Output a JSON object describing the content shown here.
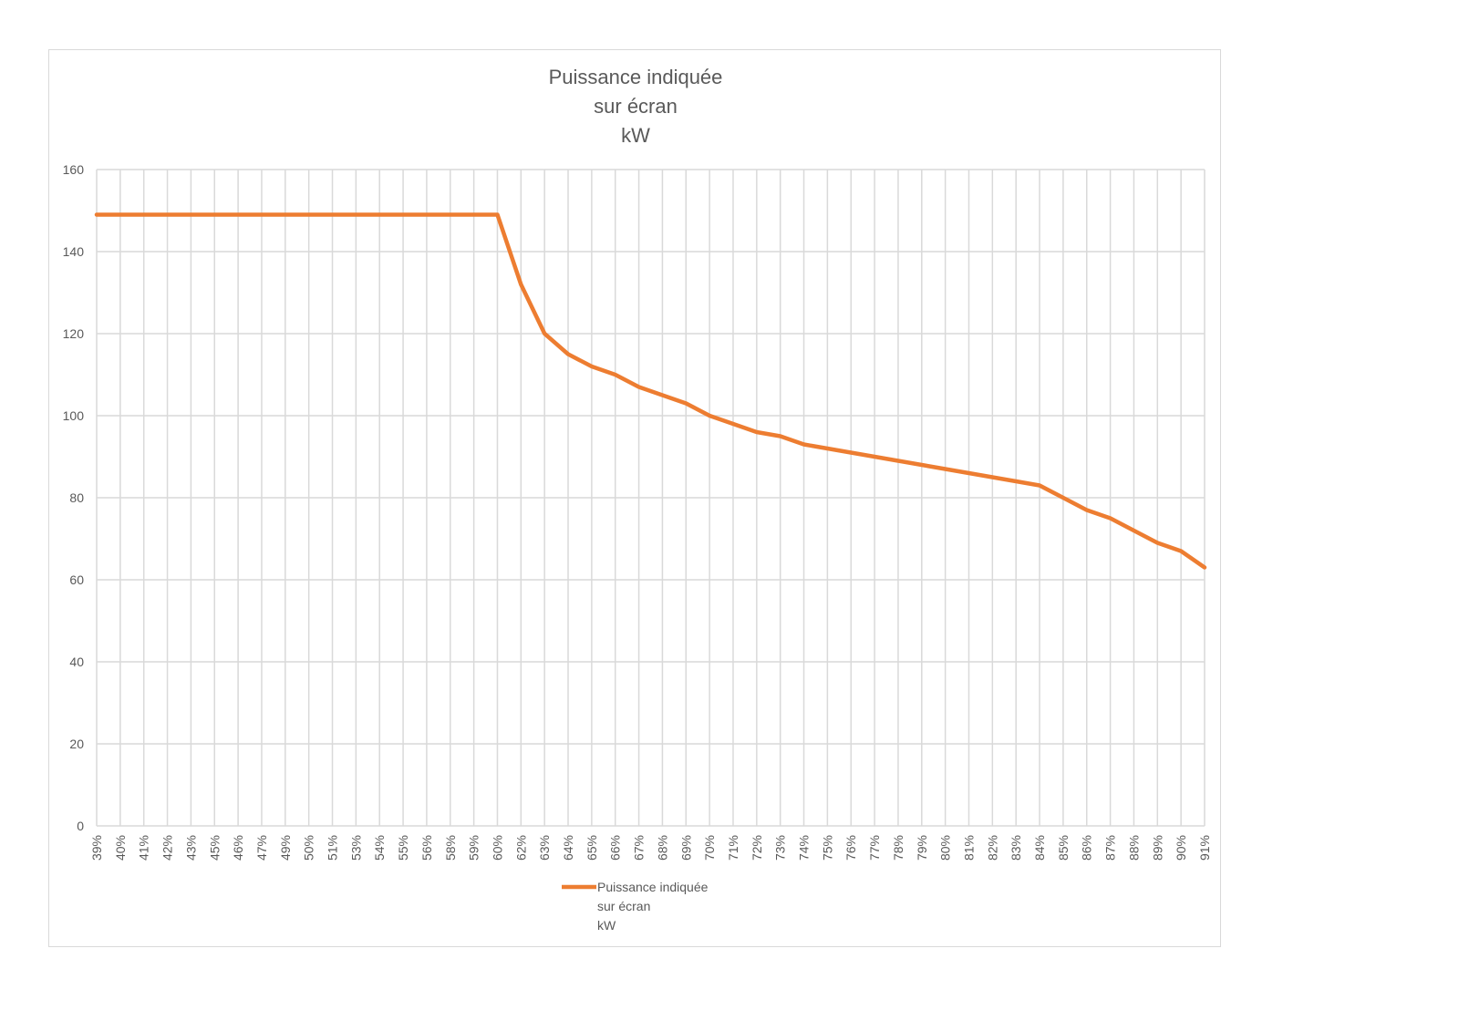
{
  "chart_data": {
    "type": "line",
    "title_lines": [
      "Puissance indiquée",
      "sur écran",
      "kW"
    ],
    "xlabel": "",
    "ylabel": "",
    "ylim": [
      0,
      160
    ],
    "y_ticks": [
      "0",
      "20",
      "40",
      "60",
      "80",
      "100",
      "120",
      "140",
      "160"
    ],
    "grid": true,
    "legend_position": "bottom",
    "categories": [
      "39%",
      "40%",
      "41%",
      "42%",
      "43%",
      "45%",
      "46%",
      "47%",
      "49%",
      "50%",
      "51%",
      "53%",
      "54%",
      "55%",
      "56%",
      "58%",
      "59%",
      "60%",
      "62%",
      "63%",
      "64%",
      "65%",
      "66%",
      "67%",
      "68%",
      "69%",
      "70%",
      "71%",
      "72%",
      "73%",
      "74%",
      "75%",
      "76%",
      "77%",
      "78%",
      "79%",
      "80%",
      "81%",
      "82%",
      "83%",
      "84%",
      "85%",
      "86%",
      "87%",
      "88%",
      "89%",
      "90%",
      "91%"
    ],
    "series": [
      {
        "name_lines": [
          "Puissance indiquée",
          "sur écran",
          "kW"
        ],
        "color": "#ed7d31",
        "values": [
          149,
          149,
          149,
          149,
          149,
          149,
          149,
          149,
          149,
          149,
          149,
          149,
          149,
          149,
          149,
          149,
          149,
          149,
          132,
          120,
          115,
          112,
          110,
          107,
          105,
          103,
          100,
          98,
          96,
          95,
          93,
          92,
          91,
          90,
          89,
          88,
          87,
          86,
          85,
          84,
          83,
          80,
          77,
          75,
          72,
          69,
          67,
          63
        ]
      }
    ]
  }
}
